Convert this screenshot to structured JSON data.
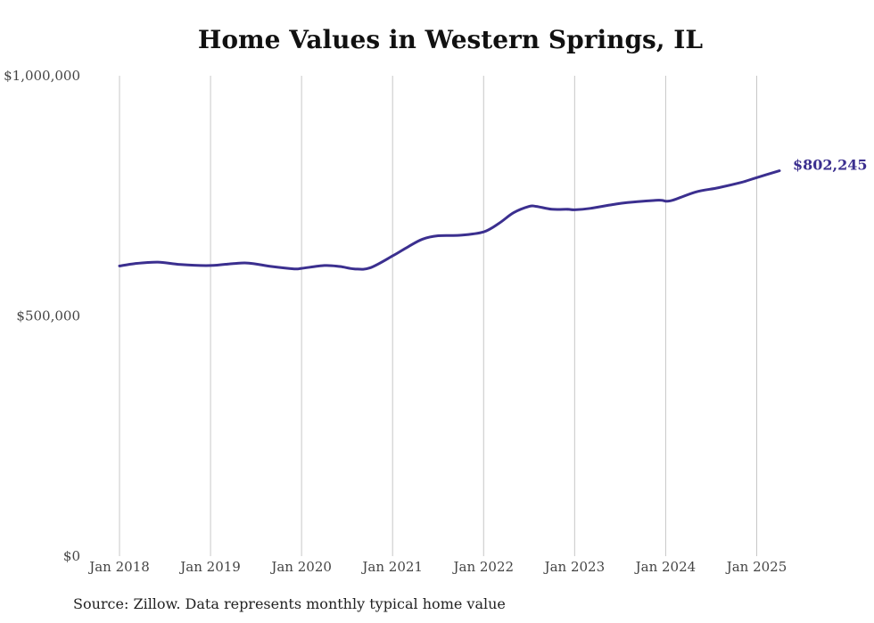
{
  "chart_data": {
    "type": "line",
    "title": "Home Values in Western Springs, IL",
    "xlabel": "",
    "ylabel": "",
    "ylim": [
      0,
      1000000
    ],
    "yticks": [
      {
        "value": 0,
        "label": "$0"
      },
      {
        "value": 500000,
        "label": "$500,000"
      },
      {
        "value": 1000000,
        "label": "$1,000,000"
      }
    ],
    "xticks": [
      {
        "value": 2018.0,
        "label": "Jan 2018"
      },
      {
        "value": 2019.0,
        "label": "Jan 2019"
      },
      {
        "value": 2020.0,
        "label": "Jan 2020"
      },
      {
        "value": 2021.0,
        "label": "Jan 2021"
      },
      {
        "value": 2022.0,
        "label": "Jan 2022"
      },
      {
        "value": 2023.0,
        "label": "Jan 2023"
      },
      {
        "value": 2024.0,
        "label": "Jan 2024"
      },
      {
        "value": 2025.0,
        "label": "Jan 2025"
      }
    ],
    "xlim": [
      2018.0,
      2025.25
    ],
    "grid": "vertical",
    "line_color": "#3b2f8f",
    "end_label": "$802,245",
    "series": [
      {
        "x": [
          2018.0,
          2018.17,
          2018.42,
          2018.67,
          2019.0,
          2019.25,
          2019.42,
          2019.67,
          2019.92,
          2020.0,
          2020.25,
          2020.42,
          2020.58,
          2020.75,
          2021.0,
          2021.17,
          2021.33,
          2021.5,
          2021.75,
          2022.0,
          2022.17,
          2022.33,
          2022.5,
          2022.58,
          2022.75,
          2022.92,
          2023.0,
          2023.17,
          2023.42,
          2023.58,
          2023.92,
          2024.0,
          2024.08,
          2024.33,
          2024.58,
          2024.83,
          2025.0,
          2025.25
        ],
        "values": [
          604000,
          609000,
          612000,
          607000,
          605000,
          609000,
          610000,
          603000,
          598000,
          599000,
          605000,
          603000,
          598000,
          600000,
          625000,
          644000,
          660000,
          667000,
          668000,
          675000,
          693000,
          715000,
          728000,
          728000,
          722000,
          722000,
          721000,
          724000,
          732000,
          736000,
          741000,
          739000,
          741000,
          758000,
          767000,
          778000,
          788000,
          802245
        ]
      }
    ]
  },
  "footer": {
    "source": "Source: Zillow. Data represents monthly typical home value"
  }
}
